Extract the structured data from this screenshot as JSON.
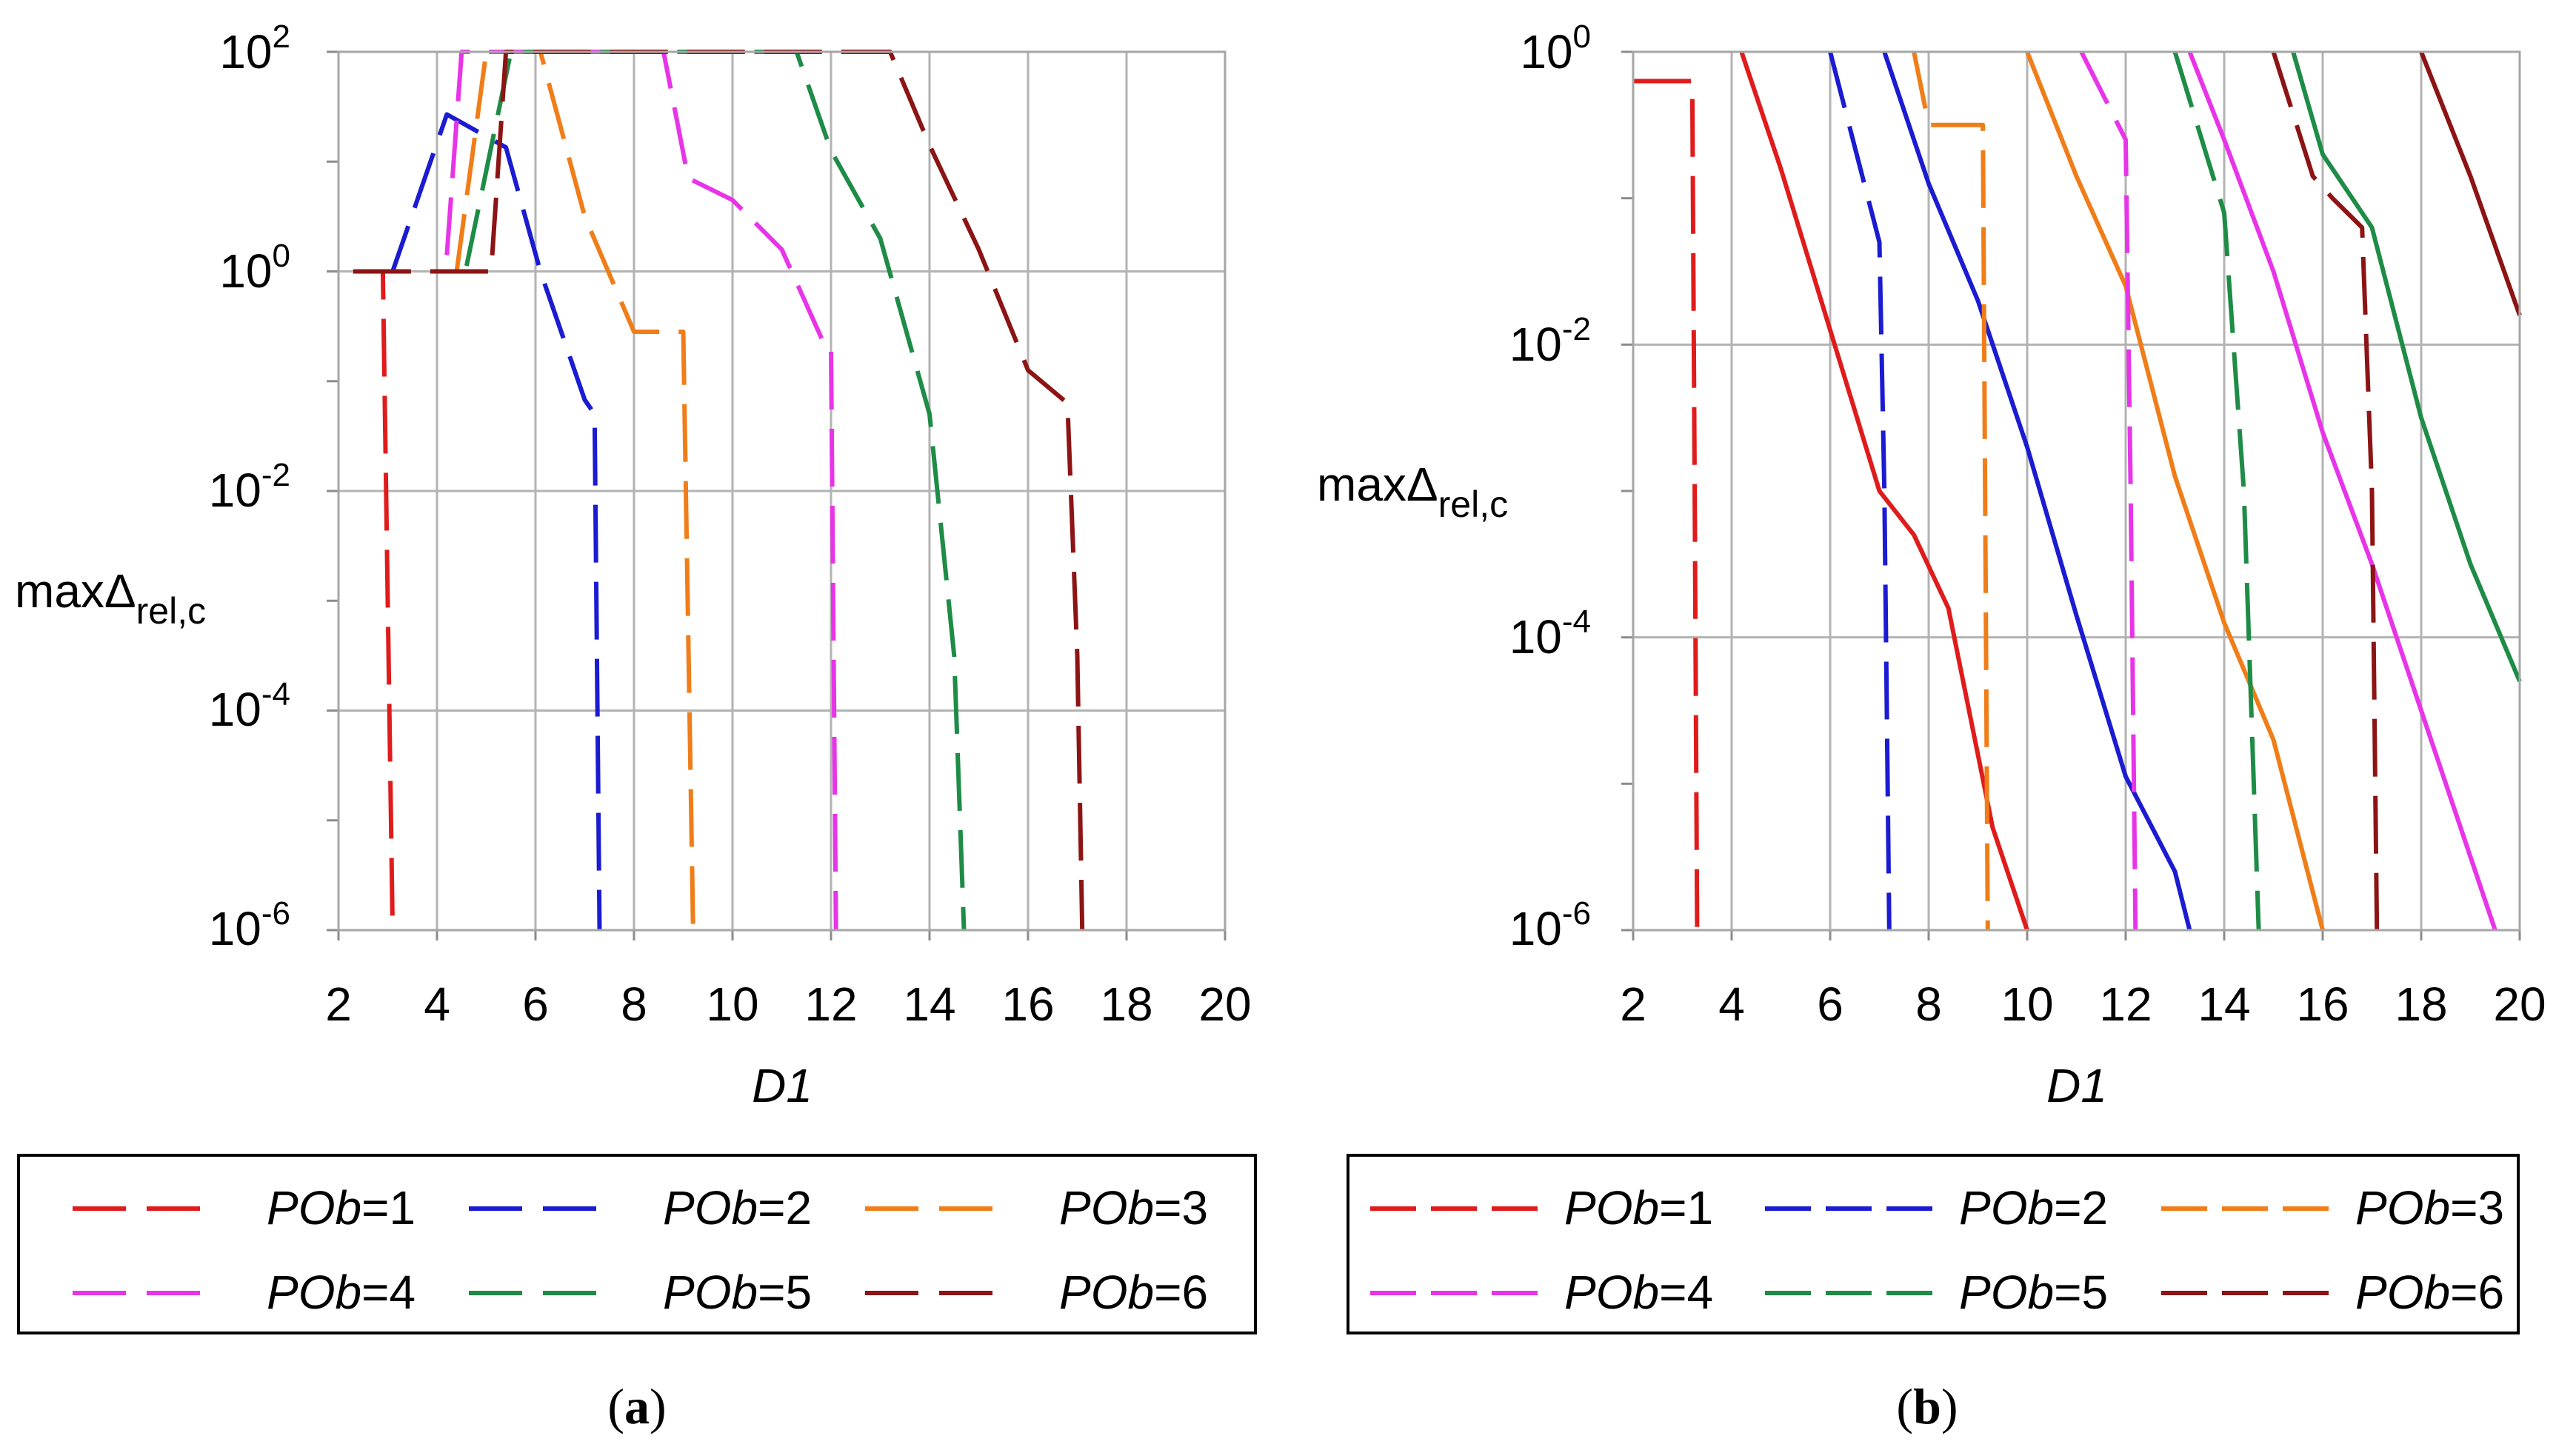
{
  "figure": {
    "x_ticks": [
      "2",
      "4",
      "6",
      "8",
      "10",
      "12",
      "14",
      "16",
      "18",
      "20"
    ],
    "y_label_base": "max",
    "y_label_symbol": "Δ",
    "y_label_sub": "rel,c",
    "x_label": "D1",
    "legend_var": "POb",
    "legend_sep": "=",
    "legend_values": [
      "1",
      "2",
      "3",
      "4",
      "5",
      "6"
    ],
    "colors": [
      "#e01b1b",
      "#1b1bd2",
      "#f07d18",
      "#e834e8",
      "#1e8c46",
      "#8c1414"
    ]
  },
  "chart_data": [
    {
      "type": "line",
      "panel_caption_open": "(",
      "panel_letter": "a",
      "panel_caption_close": ")",
      "xlabel": "D1",
      "ylabel": "maxΔrel,c",
      "xlim": [
        2,
        20
      ],
      "ylim_log10": [
        -6,
        2
      ],
      "y_ticks": [
        {
          "base": "10",
          "exp": "2"
        },
        {
          "base": "10",
          "exp": "0"
        },
        {
          "base": "10",
          "exp": "-2"
        },
        {
          "base": "10",
          "exp": "-4"
        },
        {
          "base": "10",
          "exp": "-6"
        }
      ],
      "series": [
        {
          "name": "POb=1",
          "style": "dashed",
          "x": [
            2.3,
            2.9,
            3.0,
            3.1
          ],
          "log10y": [
            0.0,
            0.0,
            -3.0,
            -6.0
          ]
        },
        {
          "name": "POb=2",
          "style": "dashed",
          "x": [
            2.9,
            3.1,
            4.2,
            5.4,
            6.1,
            7.0,
            7.2,
            7.3
          ],
          "log10y": [
            0.0,
            0.0,
            1.43,
            1.13,
            0.0,
            -1.17,
            -1.3,
            -6.0
          ]
        },
        {
          "name": "POb=3",
          "style": "dashed",
          "x": [
            4.4,
            5.0,
            5.6,
            6.1,
            7.0,
            8.0,
            9.0,
            9.2,
            9.3
          ],
          "log10y": [
            0.0,
            2.0,
            2.0,
            2.0,
            0.5,
            -0.55,
            -0.55,
            -6.0,
            -6.0
          ],
          "note": "approximate"
        },
        {
          "name": "POb=4",
          "style": "dashed",
          "x": [
            4.2,
            4.5,
            8.6,
            9.1,
            10.0,
            11.0,
            11.9,
            12.0,
            12.1
          ],
          "log10y": [
            0.15,
            2.0,
            2.0,
            0.85,
            0.65,
            0.2,
            -0.7,
            -0.7,
            -6.0
          ]
        },
        {
          "name": "POb=5",
          "style": "dashed",
          "x": [
            4.6,
            5.5,
            11.3,
            12.0,
            13.0,
            14.0,
            14.5,
            14.7
          ],
          "log10y": [
            0.05,
            2.0,
            2.0,
            1.1,
            0.3,
            -1.3,
            -3.5,
            -6.0
          ]
        },
        {
          "name": "POb=6",
          "style": "dashed",
          "x": [
            2.3,
            5.1,
            5.4,
            13.2,
            14.0,
            15.0,
            16.0,
            16.8,
            17.0,
            17.1
          ],
          "log10y": [
            0.0,
            0.0,
            2.0,
            2.0,
            1.15,
            0.2,
            -0.9,
            -1.2,
            -3.5,
            -6.0
          ]
        }
      ]
    },
    {
      "type": "line",
      "panel_caption_open": "(",
      "panel_letter": "b",
      "panel_caption_close": ")",
      "xlabel": "D1",
      "ylabel": "maxΔrel,c",
      "xlim": [
        2,
        20
      ],
      "ylim_log10": [
        -6,
        0
      ],
      "y_ticks": [
        {
          "base": "10",
          "exp": "0"
        },
        {
          "base": "10",
          "exp": "-2"
        },
        {
          "base": "10",
          "exp": "-4"
        },
        {
          "base": "10",
          "exp": "-6"
        }
      ],
      "series": [
        {
          "name": "POb=1",
          "style": "dashed",
          "x": [
            2.0,
            3.2,
            3.25,
            3.3
          ],
          "log10y": [
            -0.2,
            -0.2,
            -3.0,
            -6.0
          ]
        },
        {
          "name": "POb=1",
          "style": "solid",
          "x": [
            4.2,
            5.0,
            6.0,
            7.0,
            7.7,
            8.4,
            9.3,
            10.0
          ],
          "log10y": [
            0.0,
            -0.8,
            -1.9,
            -3.0,
            -3.3,
            -3.8,
            -5.3,
            -6.0
          ]
        },
        {
          "name": "POb=2",
          "style": "dashed",
          "x": [
            6.0,
            7.0,
            7.1,
            7.2
          ],
          "log10y": [
            0.0,
            -1.3,
            -3.0,
            -6.0
          ]
        },
        {
          "name": "POb=2",
          "style": "solid",
          "x": [
            7.1,
            8.0,
            9.0,
            10.0,
            11.0,
            12.0,
            13.0,
            13.3
          ],
          "log10y": [
            0.0,
            -0.9,
            -1.7,
            -2.7,
            -3.85,
            -4.95,
            -5.6,
            -6.0
          ]
        },
        {
          "name": "POb=3",
          "style": "dashed",
          "x": [
            7.7,
            8.0,
            9.1,
            9.2
          ],
          "log10y": [
            0.0,
            -0.5,
            -0.5,
            -6.0
          ]
        },
        {
          "name": "POb=3",
          "style": "solid",
          "x": [
            10.0,
            11.0,
            12.0,
            13.0,
            14.0,
            15.0,
            16.0
          ],
          "log10y": [
            0.0,
            -0.85,
            -1.6,
            -2.9,
            -3.9,
            -4.7,
            -6.0
          ]
        },
        {
          "name": "POb=4",
          "style": "dashed",
          "x": [
            11.1,
            12.0,
            12.1,
            12.2
          ],
          "log10y": [
            0.0,
            -0.6,
            -3.0,
            -6.0
          ]
        },
        {
          "name": "POb=4",
          "style": "solid",
          "x": [
            13.3,
            14.0,
            15.0,
            16.0,
            17.0,
            18.0,
            19.5
          ],
          "log10y": [
            0.0,
            -0.6,
            -1.5,
            -2.6,
            -3.5,
            -4.5,
            -6.0
          ]
        },
        {
          "name": "POb=5",
          "style": "dashed",
          "x": [
            13.0,
            14.0,
            14.4,
            14.7
          ],
          "log10y": [
            0.0,
            -1.1,
            -3.0,
            -6.0
          ]
        },
        {
          "name": "POb=5",
          "style": "solid",
          "x": [
            15.4,
            16.0,
            17.0,
            18.0,
            19.0,
            20.0
          ],
          "log10y": [
            0.0,
            -0.7,
            -1.2,
            -2.5,
            -3.5,
            -4.3
          ]
        },
        {
          "name": "POb=6",
          "style": "dashed",
          "x": [
            15.0,
            15.8,
            16.2,
            16.8,
            17.0,
            17.1
          ],
          "log10y": [
            0.0,
            -0.85,
            -1.0,
            -1.2,
            -3.0,
            -6.0
          ]
        },
        {
          "name": "POb=6",
          "style": "solid",
          "x": [
            18.0,
            19.0,
            20.0
          ],
          "log10y": [
            0.0,
            -0.85,
            -1.8
          ]
        }
      ]
    }
  ]
}
